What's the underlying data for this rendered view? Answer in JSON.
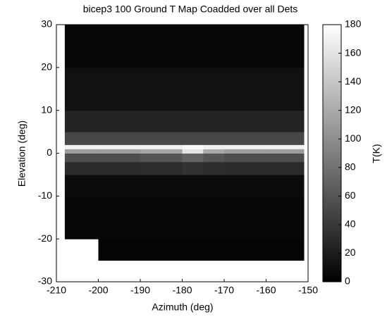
{
  "chart_data": {
    "type": "heatmap",
    "title": "bicep3 100 Ground T Map Coadded over all Dets",
    "x_label": "Azimuth (deg)",
    "y_label": "Elevation (deg)",
    "colorbar_label": "T(K)",
    "x_edges": [
      -208,
      -200,
      -190,
      -180,
      -175,
      -170,
      -160,
      -151
    ],
    "y_edges": [
      -25,
      -20,
      -10,
      -5,
      -2,
      0,
      1,
      2,
      5,
      10,
      20,
      30
    ],
    "z": [
      [
        null,
        3,
        3,
        3,
        3,
        3,
        3
      ],
      [
        5,
        5,
        5,
        5,
        5,
        5,
        5
      ],
      [
        8,
        8,
        8,
        8,
        8,
        8,
        8
      ],
      [
        30,
        30,
        32,
        35,
        32,
        30,
        30
      ],
      [
        55,
        55,
        60,
        70,
        60,
        55,
        55
      ],
      [
        110,
        110,
        115,
        160,
        120,
        110,
        110
      ],
      [
        170,
        170,
        170,
        175,
        170,
        170,
        170
      ],
      [
        50,
        50,
        50,
        50,
        50,
        50,
        50
      ],
      [
        25,
        25,
        25,
        25,
        25,
        25,
        25
      ],
      [
        12,
        12,
        12,
        12,
        12,
        12,
        12
      ],
      [
        5,
        5,
        5,
        5,
        5,
        5,
        5
      ]
    ],
    "xlim": [
      -210,
      -150
    ],
    "xticks": [
      -210,
      -200,
      -190,
      -180,
      -170,
      -160,
      -150
    ],
    "ylim": [
      -30,
      30
    ],
    "yticks": [
      -30,
      -20,
      -10,
      0,
      10,
      20,
      30
    ],
    "clim": [
      0,
      180
    ],
    "cticks": [
      0,
      20,
      40,
      60,
      80,
      100,
      120,
      140,
      160,
      180
    ],
    "colormap": "gray"
  }
}
